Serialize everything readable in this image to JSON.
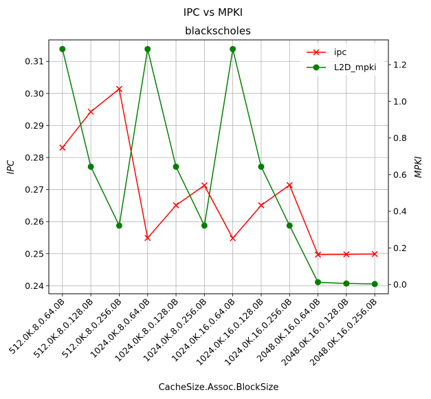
{
  "chart_data": {
    "type": "line",
    "suptitle": "IPC vs MPKI",
    "title": "blackscholes",
    "xlabel": "CacheSize.Assoc.BlockSize",
    "ylabel": "IPC",
    "ylabel_right": "MPKI",
    "categories": [
      "512.0K.8.0.64.0B",
      "512.0K.8.0.128.0B",
      "512.0K.8.0.256.0B",
      "1024.0K.8.0.64.0B",
      "1024.0K.8.0.128.0B",
      "1024.0K.8.0.256.0B",
      "1024.0K.16.0.64.0B",
      "1024.0K.16.0.128.0B",
      "1024.0K.16.0.256.0B",
      "2048.0K.16.0.64.0B",
      "2048.0K.16.0.128.0B",
      "2048.0K.16.0.256.0B"
    ],
    "ylim": [
      0.2375,
      0.3167
    ],
    "y2lim": [
      -0.05,
      1.335
    ],
    "yticks": [
      "0.24",
      "0.25",
      "0.26",
      "0.27",
      "0.28",
      "0.29",
      "0.30",
      "0.31"
    ],
    "y2ticks": [
      "0.0",
      "0.2",
      "0.4",
      "0.6",
      "0.8",
      "1.0",
      "1.2"
    ],
    "grid": true,
    "legend_position": "top-right",
    "series": [
      {
        "name": "ipc",
        "axis": "left",
        "color": "#ff0000",
        "marker": "x",
        "values": [
          0.2831,
          0.2943,
          0.3014,
          0.2549,
          0.2651,
          0.2713,
          0.2548,
          0.2651,
          0.2714,
          0.2497,
          0.2498,
          0.2499
        ]
      },
      {
        "name": "L2D_mpki",
        "axis": "right",
        "color": "#008000",
        "marker": "circle",
        "values": [
          1.285,
          0.643,
          0.322,
          1.285,
          0.643,
          0.322,
          1.285,
          0.643,
          0.322,
          0.013,
          0.006,
          0.003
        ]
      }
    ]
  }
}
